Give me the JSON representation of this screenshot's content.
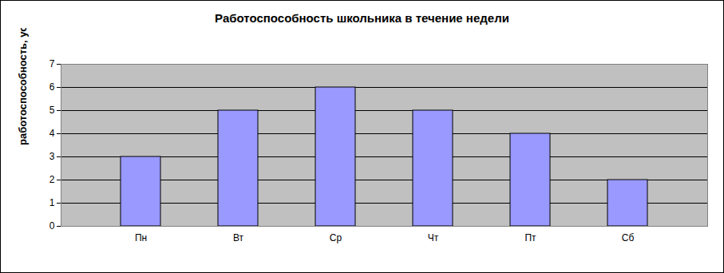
{
  "chart_data": {
    "type": "bar",
    "title": "Работоспособность школьника в течение недели",
    "y_label": "работоспособность, усл. ед.",
    "categories": [
      "Пн",
      "Вт",
      "Ср",
      "Чт",
      "Пт",
      "Сб"
    ],
    "values": [
      3,
      5,
      6,
      5,
      4,
      2
    ],
    "color": "#9999ff",
    "ylim": [
      0,
      7
    ],
    "yticks": [
      0,
      1,
      2,
      3,
      4,
      5,
      6,
      7
    ],
    "grid": true
  }
}
